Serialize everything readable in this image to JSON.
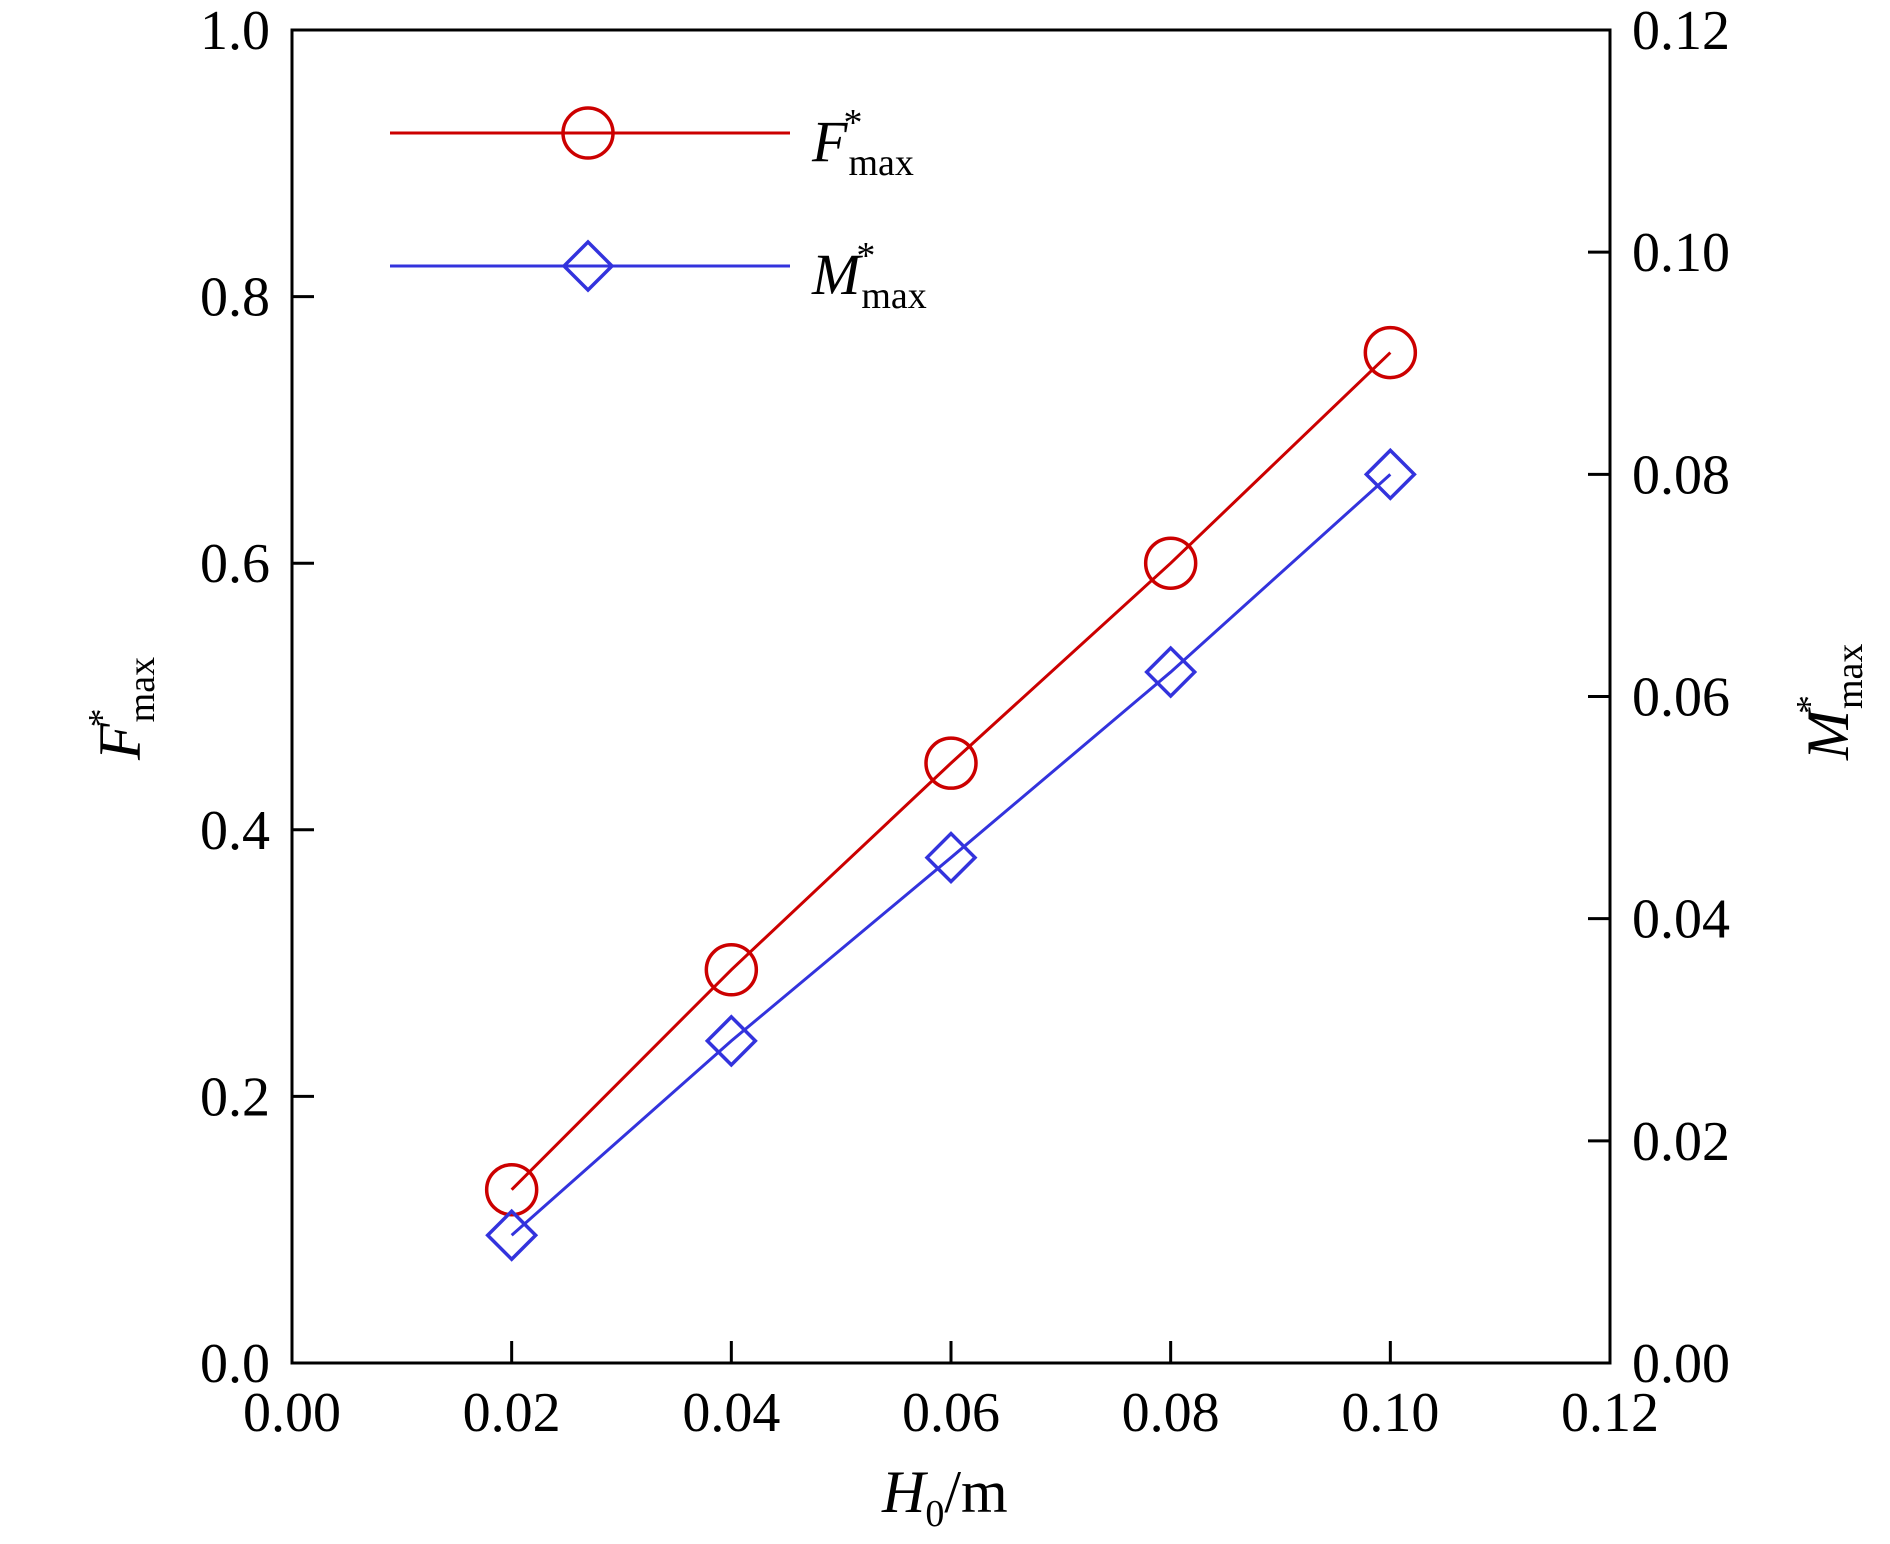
{
  "chart_data": {
    "type": "line",
    "x": [
      0.02,
      0.04,
      0.06,
      0.08,
      0.1
    ],
    "series": [
      {
        "name": "F*max",
        "axis": "left",
        "color": "#cc0000",
        "marker": "circle",
        "values": [
          0.13,
          0.295,
          0.45,
          0.6,
          0.758
        ]
      },
      {
        "name": "M*max",
        "axis": "right",
        "color": "#3333dd",
        "marker": "diamond",
        "values": [
          0.0115,
          0.029,
          0.0455,
          0.0622,
          0.08
        ]
      }
    ],
    "xlim": [
      0.0,
      0.12
    ],
    "ylim_left": [
      0.0,
      1.0
    ],
    "ylim_right": [
      0.0,
      0.12
    ],
    "xticks": [
      "0.00",
      "0.02",
      "0.04",
      "0.06",
      "0.08",
      "0.10",
      "0.12"
    ],
    "yticks_left": [
      "0.0",
      "0.2",
      "0.4",
      "0.6",
      "0.8",
      "1.0"
    ],
    "yticks_right": [
      "0.00",
      "0.02",
      "0.04",
      "0.06",
      "0.08",
      "0.10",
      "0.12"
    ],
    "xlabel": {
      "main": "H",
      "sub": "0",
      "unit": "/m"
    },
    "ylabel_left": {
      "main": "F",
      "sup": "*",
      "sub": "max"
    },
    "ylabel_right": {
      "main": "M",
      "sup": "*",
      "sub": "max"
    },
    "legend": [
      {
        "main": "F",
        "sup": "*",
        "sub": "max",
        "color": "#cc0000",
        "marker": "circle"
      },
      {
        "main": "M",
        "sup": "*",
        "sub": "max",
        "color": "#3333dd",
        "marker": "diamond"
      }
    ],
    "legend_position": "top-left",
    "grid": false
  }
}
